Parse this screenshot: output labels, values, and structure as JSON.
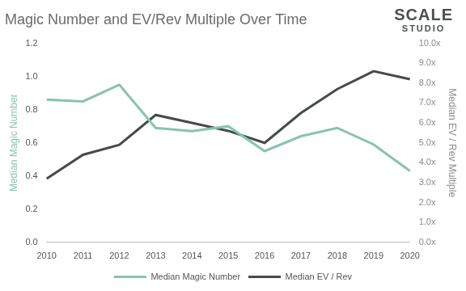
{
  "chart_data": {
    "type": "line",
    "title": "Magic Number and EV/Rev Multiple Over Time",
    "logo": [
      "SCALE",
      "STUDIO"
    ],
    "y_label": "Median Magic Number",
    "y2_label": "Median EV / Rev Multiple",
    "categories": [
      "2010",
      "2011",
      "2012",
      "2013",
      "2014",
      "2015",
      "2016",
      "2017",
      "2018",
      "2019",
      "2020"
    ],
    "series": [
      {
        "name": "Median Magic Number",
        "color": "#87c4ad",
        "axis": "y",
        "values": [
          0.86,
          0.85,
          0.95,
          0.69,
          0.67,
          0.7,
          0.55,
          0.64,
          0.69,
          0.59,
          0.43
        ]
      },
      {
        "name": "Median EV / Rev",
        "color": "#454b4a",
        "axis": "y2",
        "values": [
          3.2,
          4.4,
          4.9,
          6.4,
          6.0,
          5.6,
          5.0,
          6.5,
          7.7,
          8.6,
          8.2
        ]
      }
    ],
    "ylim": [
      0,
      1.2
    ],
    "yticks": [
      {
        "value": 0,
        "label": "0.0"
      },
      0.2,
      0.4,
      0.6,
      0.8,
      {
        "value": 1,
        "label": "1.0"
      },
      1.2
    ],
    "y2lim": [
      0,
      10
    ],
    "y2ticks": [
      {
        "value": 0,
        "label": "0.0x"
      },
      {
        "value": 1,
        "label": "1.0x"
      },
      {
        "value": 2,
        "label": "2.0x"
      },
      {
        "value": 3,
        "label": "3.0x"
      },
      {
        "value": 4,
        "label": "4.0x"
      },
      {
        "value": 5,
        "label": "5.0x"
      },
      {
        "value": 6,
        "label": "6.0x"
      },
      {
        "value": 7,
        "label": "7.0x"
      },
      {
        "value": 8,
        "label": "8.0x"
      },
      {
        "value": 9,
        "label": "9.0x"
      },
      {
        "value": 10,
        "label": "10.0x"
      }
    ],
    "grid": false,
    "legend": "bottom"
  }
}
